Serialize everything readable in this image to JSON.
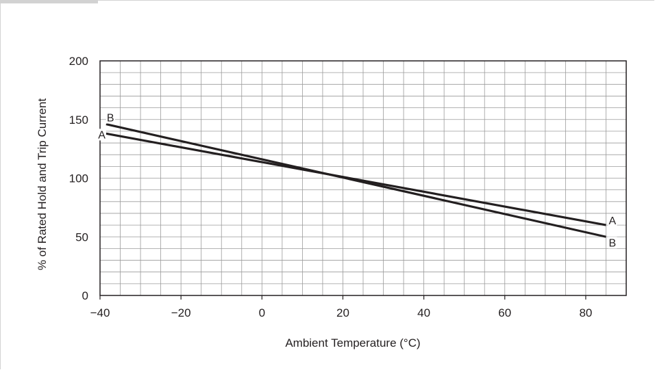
{
  "chart_data": {
    "type": "line",
    "title": "",
    "xlabel": "Ambient Temperature (°C)",
    "ylabel": "% of Rated Hold and Trip Current",
    "xlim": [
      -40,
      90
    ],
    "ylim": [
      0,
      200
    ],
    "x_ticks": [
      -40,
      -20,
      0,
      20,
      40,
      60,
      80
    ],
    "y_ticks": [
      0,
      50,
      100,
      150,
      200
    ],
    "x_tick_labels": [
      "−40",
      "−20",
      "0",
      "20",
      "40",
      "60",
      "80"
    ],
    "y_tick_labels": [
      "0",
      "50",
      "100",
      "150",
      "200"
    ],
    "grid": true,
    "x_minor_step": 5,
    "y_minor_step": 10,
    "series": [
      {
        "name": "A",
        "x": [
          -38.5,
          85
        ],
        "y": [
          138,
          60
        ],
        "color": "#231f20"
      },
      {
        "name": "B",
        "x": [
          -38.5,
          85
        ],
        "y": [
          146,
          50
        ],
        "color": "#231f20"
      }
    ]
  }
}
